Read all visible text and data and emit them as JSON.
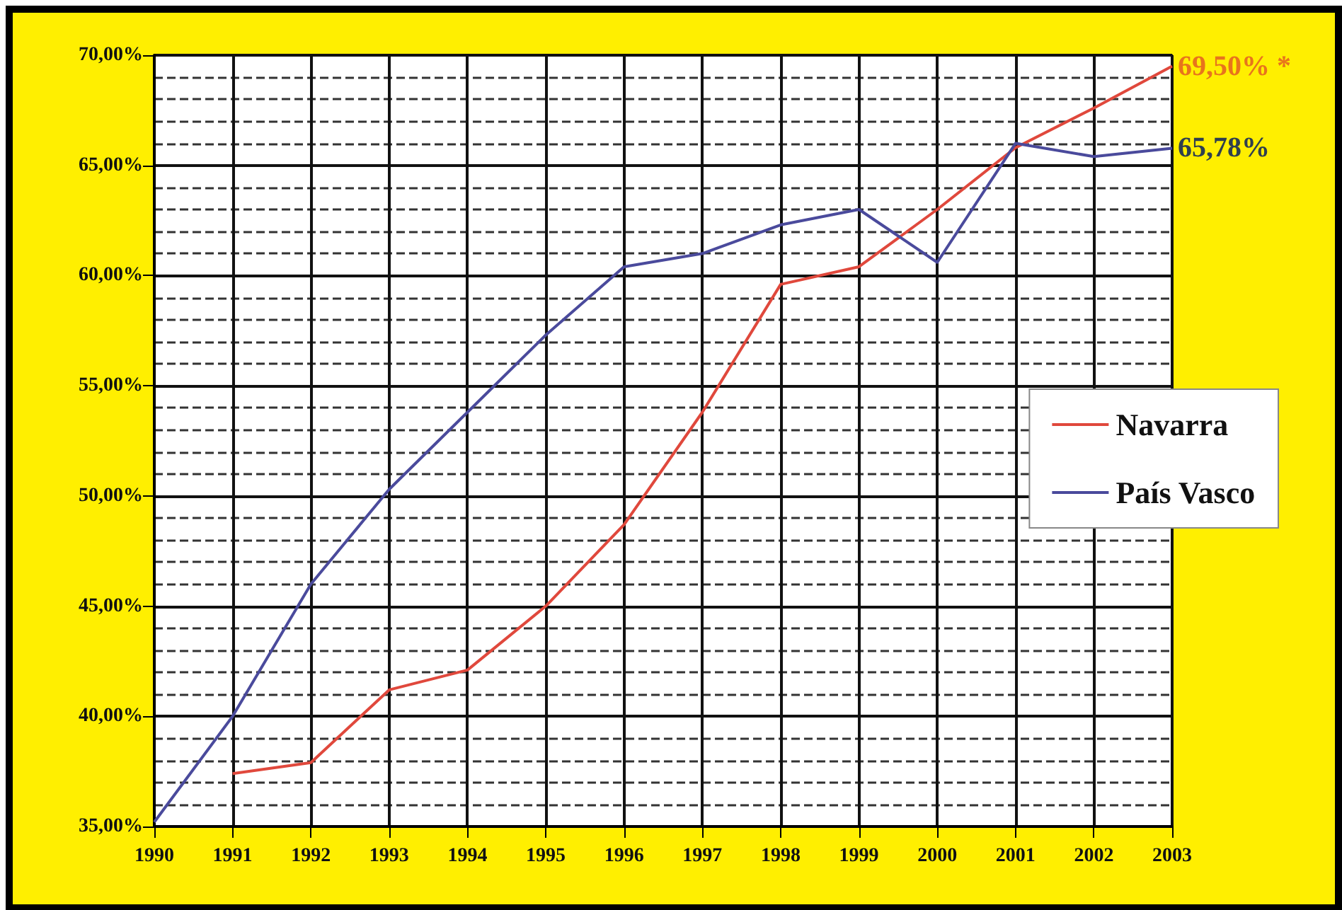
{
  "chart_data": {
    "type": "line",
    "categories": [
      "1990",
      "1991",
      "1992",
      "1993",
      "1994",
      "1995",
      "1996",
      "1997",
      "1998",
      "1999",
      "2000",
      "2001",
      "2002",
      "2003"
    ],
    "series": [
      {
        "name": "Navarra",
        "color": "#e0483c",
        "values": [
          null,
          37.4,
          37.9,
          41.2,
          42.1,
          45.0,
          48.7,
          53.8,
          59.6,
          60.4,
          63.0,
          65.8,
          67.6,
          69.5
        ]
      },
      {
        "name": "País Vasco",
        "color": "#4a4a9c",
        "values": [
          35.2,
          40.0,
          46.0,
          50.3,
          53.8,
          57.3,
          60.4,
          61.0,
          62.3,
          63.0,
          60.6,
          66.0,
          65.4,
          65.78
        ]
      }
    ],
    "ylim": [
      35,
      70
    ],
    "yticks": [
      {
        "value": 35,
        "label": "35,00%"
      },
      {
        "value": 40,
        "label": "40,00%"
      },
      {
        "value": 45,
        "label": "45,00%"
      },
      {
        "value": 50,
        "label": "50,00%"
      },
      {
        "value": 55,
        "label": "55,00%"
      },
      {
        "value": 60,
        "label": "60,00%"
      },
      {
        "value": 65,
        "label": "65,00%"
      },
      {
        "value": 70,
        "label": "70,00%"
      }
    ],
    "annotations": [
      {
        "text": "69,50% *",
        "x": "2003",
        "y": 69.5
      },
      {
        "text": "65,78%",
        "x": "2003",
        "y": 65.78
      }
    ],
    "grid": true,
    "legend": "right",
    "marker": "none",
    "line_style": "solid"
  }
}
